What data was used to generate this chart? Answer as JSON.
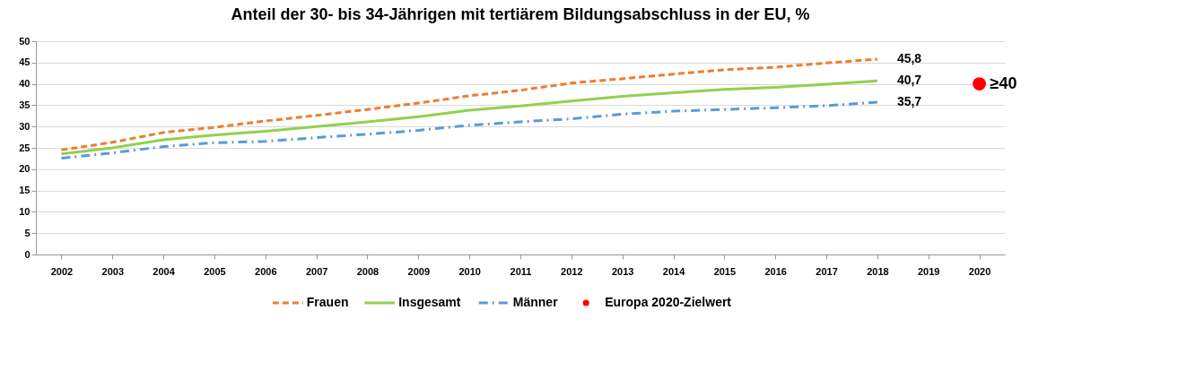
{
  "chart_data": {
    "type": "line",
    "title": "Anteil der 30- bis 34-Jährigen mit tertiärem Bildungsabschluss in der EU, %",
    "categories": [
      "2002",
      "2003",
      "2004",
      "2005",
      "2006",
      "2007",
      "2008",
      "2009",
      "2010",
      "2011",
      "2012",
      "2013",
      "2014",
      "2015",
      "2016",
      "2017",
      "2018",
      "2019",
      "2020"
    ],
    "series": [
      {
        "name": "Frauen",
        "color": "#ed7d31",
        "line_style": "dashed",
        "values": [
          24.5,
          26.3,
          28.6,
          29.8,
          31.3,
          32.6,
          34.0,
          35.5,
          37.2,
          38.5,
          40.2,
          41.2,
          42.3,
          43.3,
          43.9,
          44.9,
          45.8,
          null,
          null
        ],
        "value_labels": [
          null,
          null,
          null,
          null,
          null,
          null,
          null,
          null,
          null,
          null,
          null,
          null,
          null,
          null,
          null,
          null,
          "45,8",
          null,
          null
        ]
      },
      {
        "name": "Insgesamt",
        "color": "#92d050",
        "line_style": "solid",
        "values": [
          23.6,
          25.0,
          26.9,
          28.0,
          28.9,
          30.0,
          31.1,
          32.3,
          33.8,
          34.8,
          36.0,
          37.1,
          37.9,
          38.7,
          39.2,
          39.9,
          40.7,
          null,
          null
        ],
        "value_labels": [
          null,
          null,
          null,
          null,
          null,
          null,
          null,
          null,
          null,
          null,
          null,
          null,
          null,
          null,
          null,
          null,
          "40,7",
          null,
          null
        ]
      },
      {
        "name": "Männer",
        "color": "#5b9bd5",
        "line_style": "dashdot",
        "values": [
          22.6,
          23.8,
          25.3,
          26.2,
          26.5,
          27.4,
          28.2,
          29.1,
          30.3,
          31.1,
          31.8,
          32.9,
          33.6,
          34.0,
          34.4,
          34.9,
          35.7,
          null,
          null
        ],
        "value_labels": [
          null,
          null,
          null,
          null,
          null,
          null,
          null,
          null,
          null,
          null,
          null,
          null,
          null,
          null,
          null,
          null,
          "35,7",
          null,
          null
        ]
      },
      {
        "name": "Europa 2020-Zielwert",
        "type": "scatter",
        "color": "#ff0000",
        "marker": "circle",
        "values": [
          null,
          null,
          null,
          null,
          null,
          null,
          null,
          null,
          null,
          null,
          null,
          null,
          null,
          null,
          null,
          null,
          null,
          null,
          40
        ],
        "value_labels": [
          null,
          null,
          null,
          null,
          null,
          null,
          null,
          null,
          null,
          null,
          null,
          null,
          null,
          null,
          null,
          null,
          null,
          null,
          "≥40"
        ]
      }
    ],
    "ylim": [
      0,
      50
    ],
    "yticks": [
      0,
      5,
      10,
      15,
      20,
      25,
      30,
      35,
      40,
      45,
      50
    ],
    "grid": "y",
    "legend": "bottom"
  }
}
